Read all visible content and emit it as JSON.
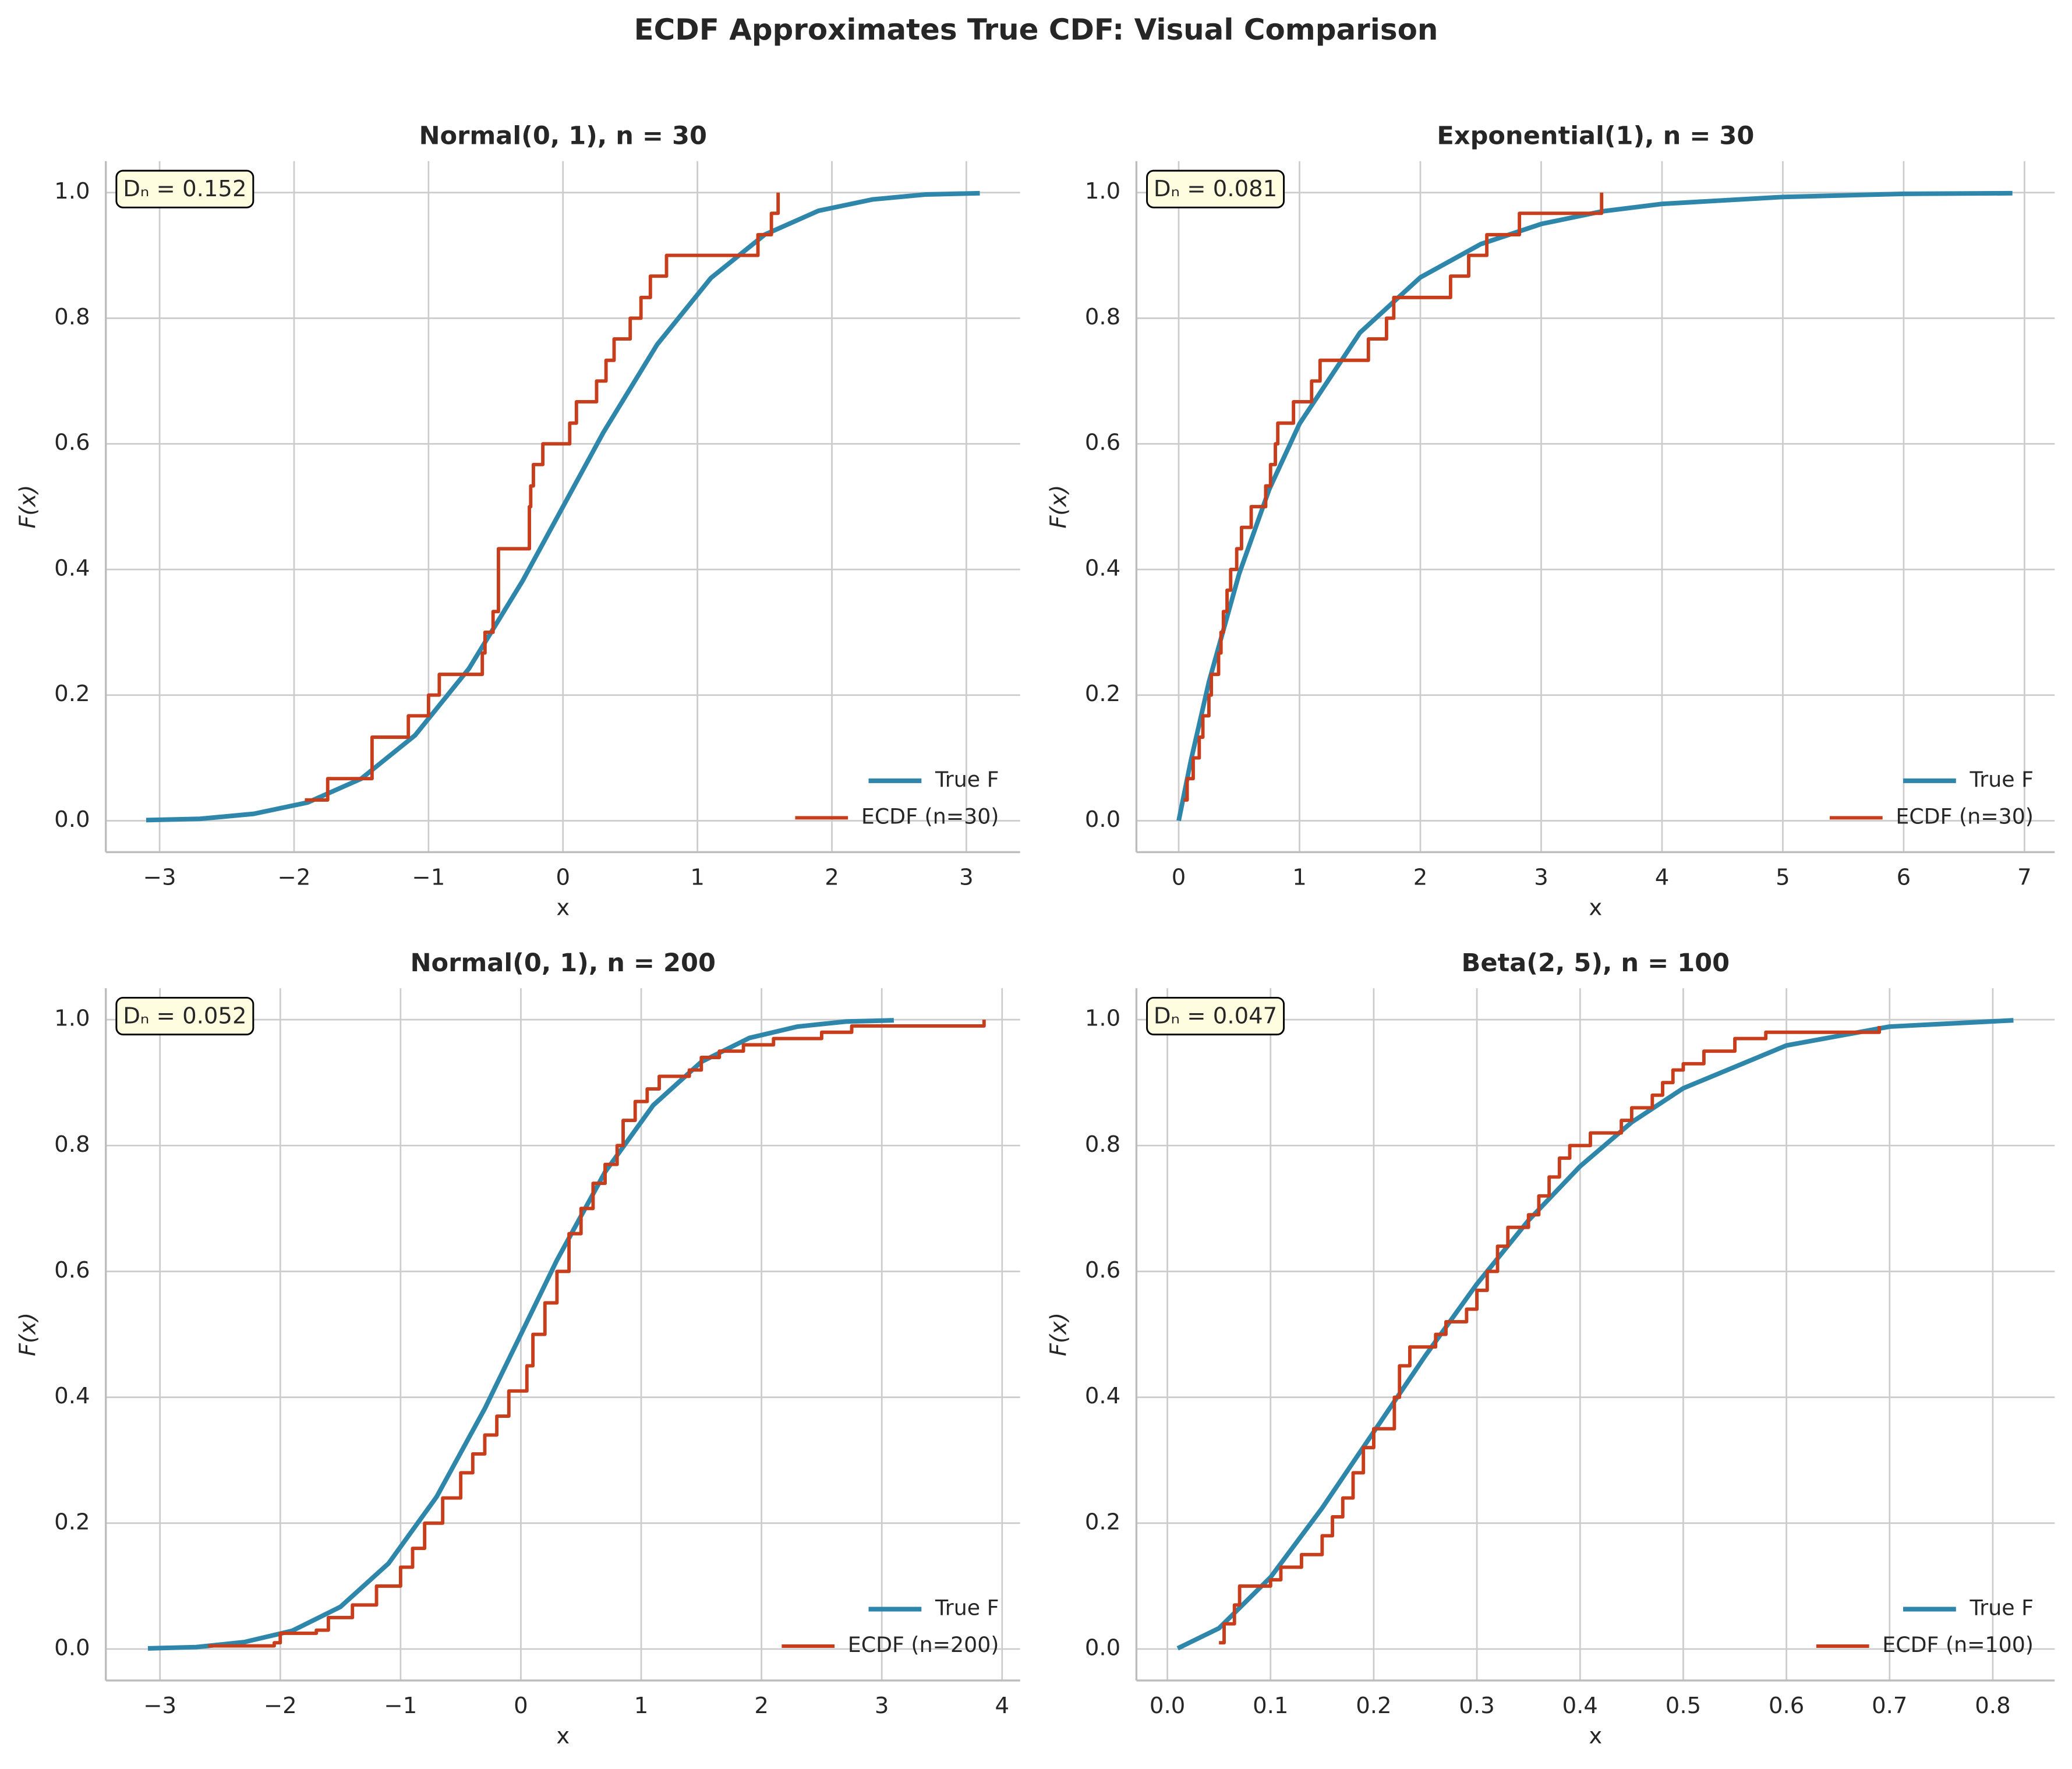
{
  "title": "ECDF Approximates True CDF: Visual Comparison",
  "chart_data": [
    {
      "type": "line",
      "title": "Normal(0, 1), n = 30",
      "x_label": "x",
      "y_label": "F(x)",
      "annotation": "Dₙ = 0.152",
      "grid": true,
      "legend": "lower right",
      "xlim": [
        -3.4,
        3.4
      ],
      "ylim": [
        -0.05,
        1.05
      ],
      "xticks": [
        {
          "value": -3,
          "label": "−3"
        },
        {
          "value": -2,
          "label": "−2"
        },
        {
          "value": -1,
          "label": "−1"
        },
        0,
        1,
        2,
        3
      ],
      "yticks": [
        {
          "value": 0,
          "label": "0.0"
        },
        0.2,
        0.4,
        0.6,
        0.8,
        {
          "value": 1,
          "label": "1.0"
        }
      ],
      "series": [
        {
          "name": "True F",
          "color": "#2e86ab",
          "x": [
            -3.1,
            -2.7,
            -2.3,
            -1.9,
            -1.5,
            -1.1,
            -0.7,
            -0.3,
            0,
            0.3,
            0.7,
            1.1,
            1.5,
            1.9,
            2.3,
            2.7,
            3.1
          ],
          "values": [
            0.001,
            0.003,
            0.011,
            0.029,
            0.067,
            0.136,
            0.242,
            0.382,
            0.5,
            0.618,
            0.758,
            0.864,
            0.933,
            0.971,
            0.989,
            0.997,
            0.999
          ]
        },
        {
          "name": "ECDF (n=30)",
          "color": "#c73e1d",
          "step": "post",
          "x": [
            -1.92,
            -1.75,
            -1.42,
            -1.15,
            -1.0,
            -0.92,
            -0.6,
            -0.58,
            -0.52,
            -0.48,
            -0.25,
            -0.24,
            -0.22,
            -0.15,
            0.05,
            0.1,
            0.25,
            0.32,
            0.38,
            0.5,
            0.58,
            0.65,
            0.77,
            1.45,
            1.55,
            1.6
          ],
          "values": [
            0.033,
            0.067,
            0.133,
            0.167,
            0.2,
            0.233,
            0.267,
            0.3,
            0.333,
            0.433,
            0.5,
            0.533,
            0.567,
            0.6,
            0.633,
            0.667,
            0.7,
            0.733,
            0.767,
            0.8,
            0.833,
            0.867,
            0.9,
            0.933,
            0.967,
            1.0
          ]
        }
      ]
    },
    {
      "type": "line",
      "title": "Exponential(1), n = 30",
      "x_label": "x",
      "y_label": "F(x)",
      "annotation": "Dₙ = 0.081",
      "grid": true,
      "legend": "lower right",
      "xlim": [
        -0.35,
        7.25
      ],
      "ylim": [
        -0.05,
        1.05
      ],
      "xticks": [
        0,
        1,
        2,
        3,
        4,
        5,
        6,
        7
      ],
      "yticks": [
        {
          "value": 0,
          "label": "0.0"
        },
        0.2,
        0.4,
        0.6,
        0.8,
        {
          "value": 1,
          "label": "1.0"
        }
      ],
      "series": [
        {
          "name": "True F",
          "color": "#2e86ab",
          "x": [
            0,
            0.1,
            0.25,
            0.5,
            0.75,
            1,
            1.5,
            2,
            2.5,
            3,
            3.5,
            4,
            5,
            6,
            6.9
          ],
          "values": [
            0,
            0.095,
            0.221,
            0.393,
            0.528,
            0.632,
            0.777,
            0.865,
            0.918,
            0.95,
            0.97,
            0.982,
            0.993,
            0.998,
            0.999
          ]
        },
        {
          "name": "ECDF (n=30)",
          "color": "#c73e1d",
          "step": "post",
          "x": [
            0.04,
            0.07,
            0.12,
            0.17,
            0.2,
            0.25,
            0.27,
            0.33,
            0.35,
            0.37,
            0.4,
            0.43,
            0.48,
            0.52,
            0.6,
            0.72,
            0.76,
            0.8,
            0.82,
            0.95,
            1.1,
            1.17,
            1.57,
            1.72,
            1.78,
            2.25,
            2.4,
            2.55,
            2.82,
            3.5
          ],
          "values": [
            0.033,
            0.067,
            0.1,
            0.133,
            0.167,
            0.2,
            0.233,
            0.267,
            0.3,
            0.333,
            0.367,
            0.4,
            0.433,
            0.467,
            0.5,
            0.533,
            0.567,
            0.6,
            0.633,
            0.667,
            0.7,
            0.733,
            0.767,
            0.8,
            0.833,
            0.867,
            0.9,
            0.933,
            0.967,
            1.0
          ]
        }
      ]
    },
    {
      "type": "line",
      "title": "Normal(0, 1), n = 200",
      "x_label": "x",
      "y_label": "F(x)",
      "annotation": "Dₙ = 0.052",
      "grid": true,
      "legend": "lower right",
      "xlim": [
        -3.45,
        4.15
      ],
      "ylim": [
        -0.05,
        1.05
      ],
      "xticks": [
        {
          "value": -3,
          "label": "−3"
        },
        {
          "value": -2,
          "label": "−2"
        },
        {
          "value": -1,
          "label": "−1"
        },
        0,
        1,
        2,
        3,
        4
      ],
      "yticks": [
        {
          "value": 0,
          "label": "0.0"
        },
        0.2,
        0.4,
        0.6,
        0.8,
        {
          "value": 1,
          "label": "1.0"
        }
      ],
      "series": [
        {
          "name": "True F",
          "color": "#2e86ab",
          "x": [
            -3.1,
            -2.7,
            -2.3,
            -1.9,
            -1.5,
            -1.1,
            -0.7,
            -0.3,
            0,
            0.3,
            0.7,
            1.1,
            1.5,
            1.9,
            2.3,
            2.7,
            3.1
          ],
          "values": [
            0.001,
            0.003,
            0.011,
            0.029,
            0.067,
            0.136,
            0.242,
            0.382,
            0.5,
            0.618,
            0.758,
            0.864,
            0.933,
            0.971,
            0.989,
            0.997,
            0.999
          ]
        },
        {
          "name": "ECDF (n=200)",
          "color": "#c73e1d",
          "step": "post",
          "x": [
            -2.6,
            -2.05,
            -2.0,
            -1.7,
            -1.6,
            -1.4,
            -1.2,
            -1.0,
            -0.9,
            -0.8,
            -0.65,
            -0.5,
            -0.4,
            -0.3,
            -0.2,
            -0.1,
            0.05,
            0.1,
            0.2,
            0.3,
            0.4,
            0.5,
            0.6,
            0.7,
            0.8,
            0.85,
            0.95,
            1.05,
            1.15,
            1.4,
            1.5,
            1.65,
            1.85,
            2.1,
            2.5,
            2.75,
            3.85
          ],
          "values": [
            0.005,
            0.01,
            0.025,
            0.03,
            0.05,
            0.07,
            0.1,
            0.13,
            0.16,
            0.2,
            0.24,
            0.28,
            0.31,
            0.34,
            0.37,
            0.41,
            0.45,
            0.5,
            0.55,
            0.6,
            0.66,
            0.7,
            0.74,
            0.77,
            0.8,
            0.84,
            0.87,
            0.89,
            0.91,
            0.92,
            0.94,
            0.95,
            0.96,
            0.97,
            0.98,
            0.99,
            1.0
          ]
        }
      ]
    },
    {
      "type": "line",
      "title": "Beta(2, 5), n = 100",
      "x_label": "x",
      "y_label": "F(x)",
      "annotation": "Dₙ = 0.047",
      "grid": true,
      "legend": "lower right",
      "xlim": [
        -0.03,
        0.86
      ],
      "ylim": [
        -0.05,
        1.05
      ],
      "xticks": [
        {
          "value": 0,
          "label": "0.0"
        },
        0.1,
        0.2,
        0.3,
        0.4,
        0.5,
        0.6,
        0.7,
        0.8
      ],
      "yticks": [
        {
          "value": 0,
          "label": "0.0"
        },
        0.2,
        0.4,
        0.6,
        0.8,
        {
          "value": 1,
          "label": "1.0"
        }
      ],
      "series": [
        {
          "name": "True F",
          "color": "#2e86ab",
          "x": [
            0.01,
            0.05,
            0.1,
            0.15,
            0.2,
            0.25,
            0.3,
            0.35,
            0.4,
            0.45,
            0.5,
            0.6,
            0.7,
            0.82
          ],
          "values": [
            0.001,
            0.033,
            0.114,
            0.224,
            0.345,
            0.466,
            0.58,
            0.681,
            0.767,
            0.837,
            0.891,
            0.959,
            0.989,
            0.999
          ]
        },
        {
          "name": "ECDF (n=100)",
          "color": "#c73e1d",
          "step": "post",
          "x": [
            0.05,
            0.055,
            0.065,
            0.07,
            0.1,
            0.11,
            0.13,
            0.15,
            0.16,
            0.17,
            0.18,
            0.19,
            0.2,
            0.22,
            0.225,
            0.235,
            0.26,
            0.27,
            0.29,
            0.3,
            0.31,
            0.32,
            0.33,
            0.35,
            0.36,
            0.37,
            0.38,
            0.39,
            0.41,
            0.44,
            0.45,
            0.47,
            0.48,
            0.49,
            0.5,
            0.52,
            0.55,
            0.58,
            0.69
          ],
          "values": [
            0.01,
            0.04,
            0.07,
            0.1,
            0.11,
            0.13,
            0.15,
            0.18,
            0.21,
            0.24,
            0.28,
            0.32,
            0.35,
            0.4,
            0.45,
            0.48,
            0.5,
            0.52,
            0.54,
            0.57,
            0.6,
            0.64,
            0.67,
            0.69,
            0.72,
            0.75,
            0.78,
            0.8,
            0.82,
            0.84,
            0.86,
            0.88,
            0.9,
            0.92,
            0.93,
            0.95,
            0.97,
            0.98,
            0.99
          ]
        }
      ]
    }
  ]
}
